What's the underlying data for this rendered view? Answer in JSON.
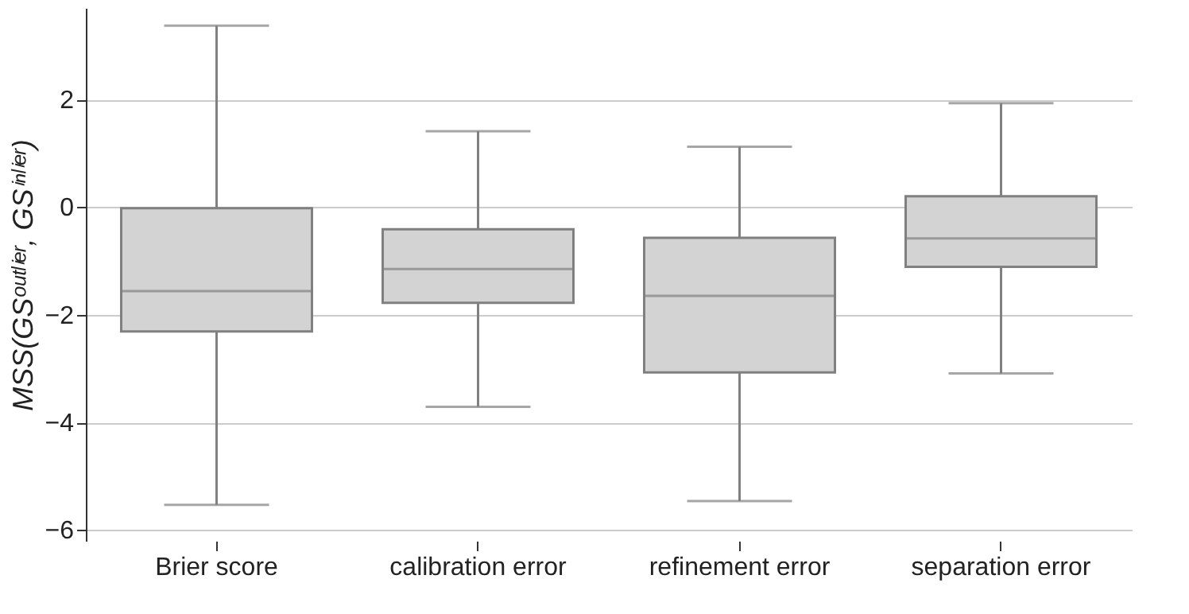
{
  "chart_data": {
    "type": "box",
    "ylabel": "MSS(GSᵒᵘᵗˡⁱᵉʳ, GSⁱⁿˡⁱᵉʳ)",
    "categories": [
      "Brier score",
      "calibration error",
      "refinement error",
      "separation error"
    ],
    "series": [
      {
        "color": "#d3d3d3",
        "boxes": [
          {
            "low": -5.53,
            "q1": -2.31,
            "median": -1.56,
            "q3": -0.02,
            "high": 3.37
          },
          {
            "low": -3.71,
            "q1": -1.78,
            "median": -1.15,
            "q3": -0.41,
            "high": 1.41
          },
          {
            "low": -5.46,
            "q1": -3.07,
            "median": -1.65,
            "q3": -0.57,
            "high": 1.12
          },
          {
            "low": -3.09,
            "q1": -1.11,
            "median": -0.58,
            "q3": 0.2,
            "high": 1.93
          }
        ]
      }
    ],
    "ylim": [
      -6.2,
      3.7
    ],
    "yticks": [
      -6,
      -4,
      -2,
      0,
      2
    ],
    "grid": "y"
  }
}
